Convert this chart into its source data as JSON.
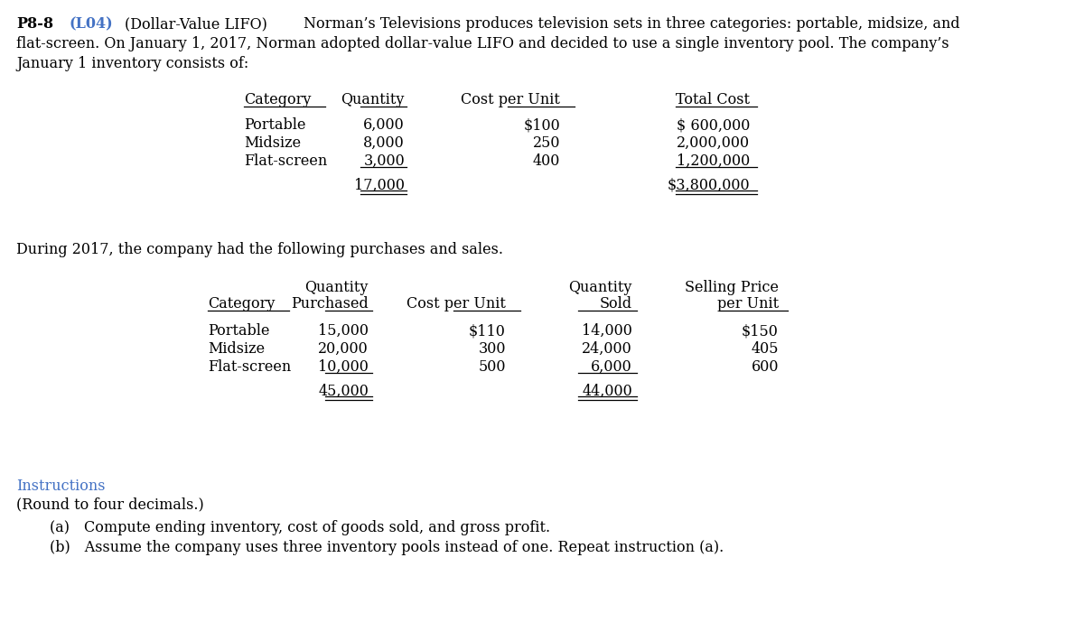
{
  "bg_color": "#ffffff",
  "font_size": 11.5,
  "font_size_small": 11,
  "instructions_color": "#4472c4",
  "header_line1": "P8-8",
  "header_red": "(L04)",
  "header_title": "(Dollar-Value LIFO)",
  "header_desc1": "Norman’s Televisions produces television sets in three categories: portable, midsize, and",
  "header_desc2": "flat-screen. On January 1, 2017, Norman adopted dollar-value LIFO and decided to use a single inventory pool. The company’s",
  "header_desc3": "January 1 inventory consists of:",
  "t1_headers": [
    "Category",
    "Quantity",
    "Cost per Unit",
    "Total Cost"
  ],
  "t1_rows": [
    [
      "Portable",
      "6,000",
      "$100",
      "$ 600,000"
    ],
    [
      "Midsize",
      "8,000",
      "250",
      "2,000,000"
    ],
    [
      "Flat-screen",
      "3,000",
      "400",
      "1,200,000"
    ]
  ],
  "t1_subtotal_qty": "17,000",
  "t1_subtotal_cost": "$3,800,000",
  "mid_text": "During 2017, the company had the following purchases and sales.",
  "t2_header_top": [
    "",
    "Quantity",
    "",
    "Quantity",
    "Selling Price"
  ],
  "t2_header_bot": [
    "Category",
    "Purchased",
    "Cost per Unit",
    "Sold",
    "per Unit"
  ],
  "t2_rows": [
    [
      "Portable",
      "15,000",
      "$110",
      "14,000",
      "$150"
    ],
    [
      "Midsize",
      "20,000",
      "300",
      "24,000",
      "405"
    ],
    [
      "Flat-screen",
      "10,000",
      "500",
      "6,000",
      "600"
    ]
  ],
  "t2_subtotal_qty_pur": "45,000",
  "t2_subtotal_qty_sol": "44,000",
  "instr_text": "Instructions",
  "note_text": "(Round to four decimals.)",
  "item_a": "(a) Compute ending inventory, cost of goods sold, and gross profit.",
  "item_b": "(b) Assume the company uses three inventory pools instead of one. Repeat instruction (a)."
}
